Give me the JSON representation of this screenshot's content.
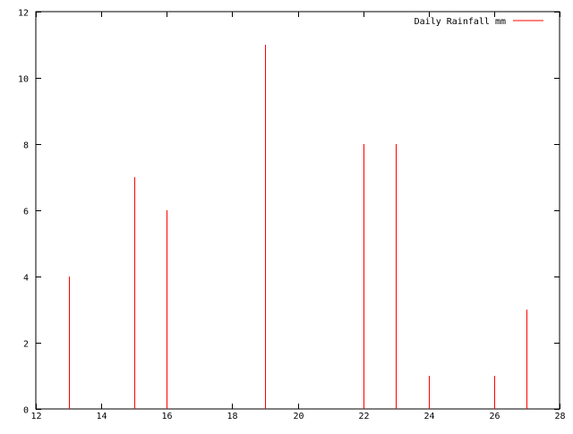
{
  "chart_data": {
    "type": "impulse",
    "x": [
      13,
      15,
      16,
      19,
      22,
      23,
      24,
      26,
      27
    ],
    "series": [
      {
        "name": "Daily Rainfall mm",
        "color": "#ff0000",
        "values": [
          4,
          7,
          6,
          11,
          8,
          8,
          1,
          1,
          3
        ]
      }
    ],
    "xlim": [
      12,
      28
    ],
    "ylim": [
      0,
      12
    ],
    "x_ticks": [
      12,
      14,
      16,
      18,
      20,
      22,
      24,
      26,
      28
    ],
    "y_ticks": [
      0,
      2,
      4,
      6,
      8,
      10,
      12
    ],
    "grid": false,
    "legend_position": "top-right",
    "title": "",
    "xlabel": "",
    "ylabel": ""
  }
}
